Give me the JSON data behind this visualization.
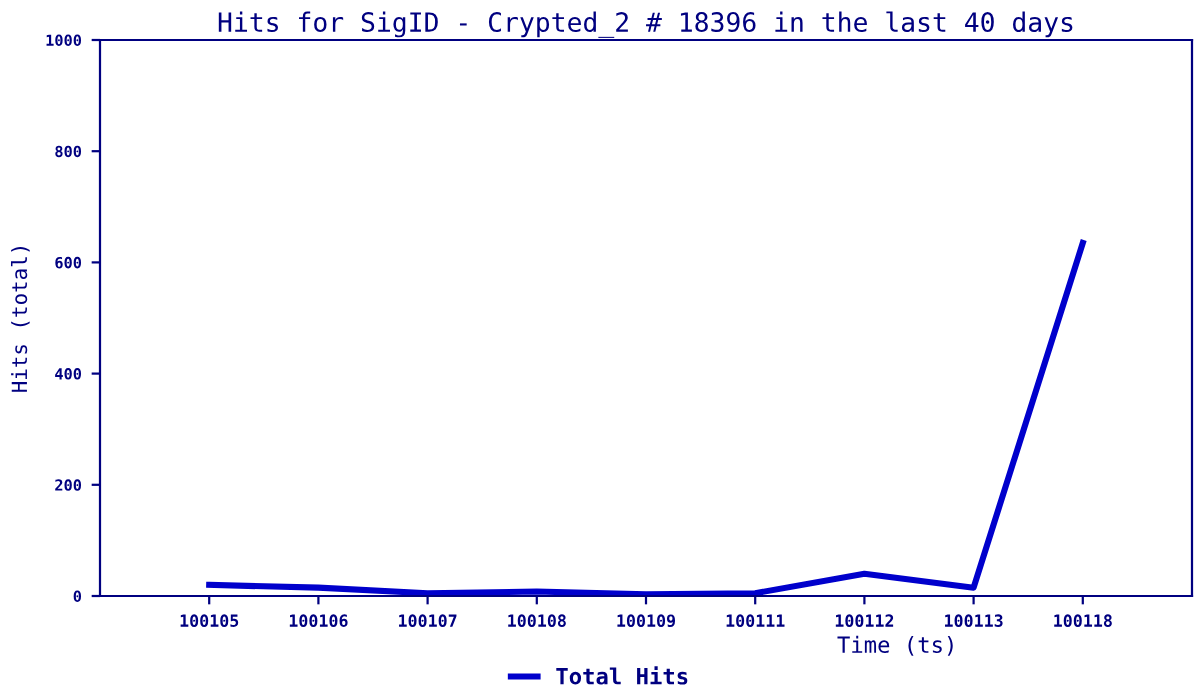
{
  "chart_data": {
    "type": "line",
    "title": "Hits for SigID - Crypted_2 # 18396 in the last 40 days",
    "xlabel": "Time (ts)",
    "ylabel": "Hits (total)",
    "categories": [
      null,
      "100105",
      "100106",
      "100107",
      "100108",
      "100109",
      "100111",
      "100112",
      "100113",
      "100118",
      null
    ],
    "series": [
      {
        "name": "Total Hits",
        "color": "#0000cc",
        "values": [
          null,
          20,
          15,
          5,
          8,
          3,
          5,
          40,
          15,
          635,
          null
        ]
      }
    ],
    "ylim": [
      0,
      1000
    ],
    "yticks": [
      0,
      200,
      400,
      600,
      800,
      1000
    ],
    "grid": false,
    "legend": "bottom",
    "marker": "none",
    "line_style": "solid"
  }
}
